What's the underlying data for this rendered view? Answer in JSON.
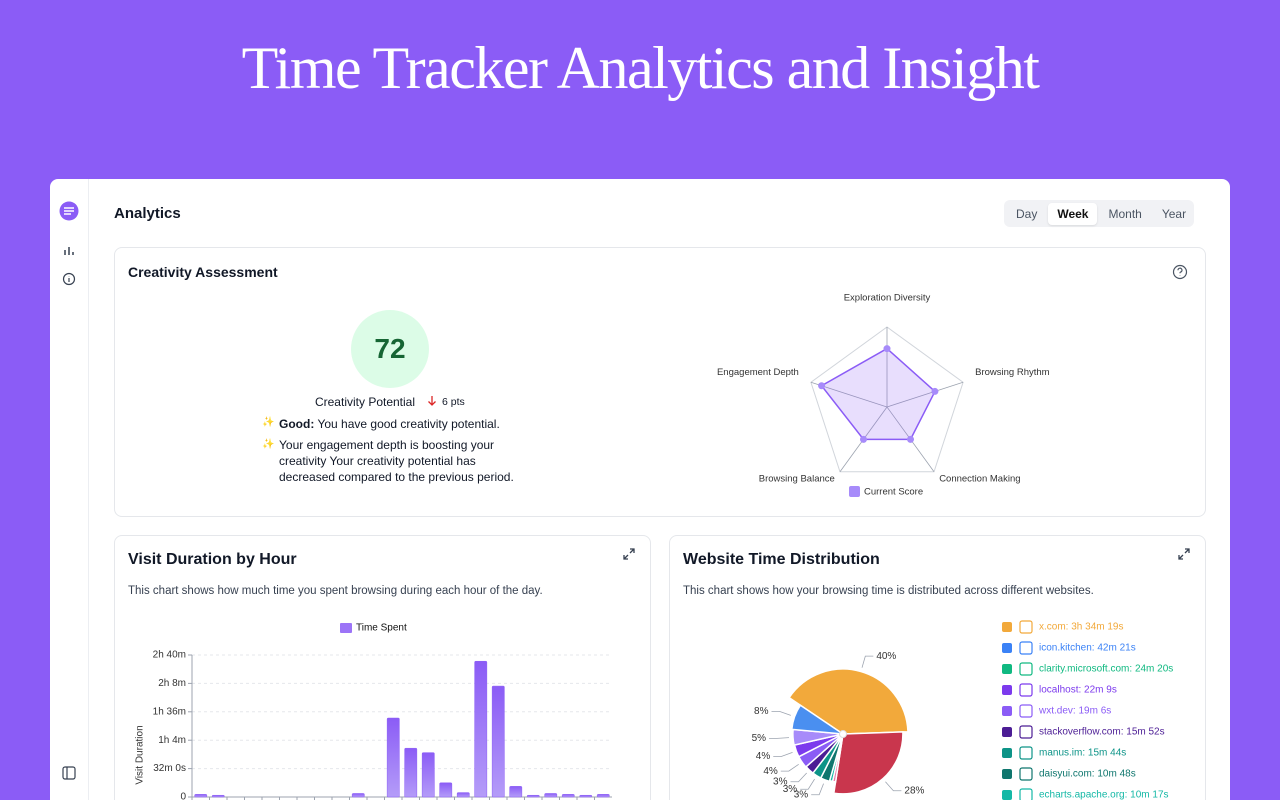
{
  "header": {
    "title": "Time Tracker Analytics and Insight"
  },
  "page": {
    "title": "Analytics",
    "tabs": [
      {
        "label": "Day",
        "active": false
      },
      {
        "label": "Week",
        "active": true
      },
      {
        "label": "Month",
        "active": false
      },
      {
        "label": "Year",
        "active": false
      }
    ]
  },
  "creativity": {
    "title": "Creativity Assessment",
    "score": 72,
    "score_label": "Creativity Potential",
    "change": "6 pts",
    "notes": [
      {
        "label": "Good:",
        "text": "You have good creativity potential."
      },
      {
        "text": "Your engagement depth is boosting your creativity Your creativity potential has decreased compared to the previous period."
      }
    ]
  },
  "chart_data": [
    {
      "type": "radar",
      "indicators": [
        "Exploration Diversity",
        "Browsing Rhythm",
        "Connection Making",
        "Browsing Balance",
        "Engagement Depth"
      ],
      "rlim": [
        0,
        100
      ],
      "rticks": [
        20,
        40,
        60,
        80,
        100
      ],
      "series": [
        {
          "name": "Current Score",
          "color": "#8b5cf6",
          "values": [
            73,
            63,
            50,
            50,
            86
          ]
        }
      ]
    },
    {
      "type": "bar",
      "title": "Visit Duration by Hour",
      "subtitle": "This chart shows how much time you spent browsing during each hour of the day.",
      "ylabel": "Visit Duration",
      "categories": [
        null,
        null,
        null,
        null,
        null,
        null,
        null,
        null,
        null,
        null,
        null,
        null,
        null,
        null,
        null,
        null,
        null,
        null,
        null,
        null,
        null,
        null,
        null,
        null
      ],
      "series": [
        {
          "name": "Time Spent",
          "color": "#8b5cf6",
          "values": [
            3,
            2,
            0,
            0,
            0,
            0,
            0,
            0,
            0,
            4,
            0,
            89,
            55,
            50,
            16,
            5,
            153,
            125,
            12,
            2,
            4,
            3,
            2,
            3
          ]
        }
      ],
      "ylim": [
        0,
        160
      ],
      "yticks": [
        0,
        {
          "value": 32,
          "label": "32m 0s"
        },
        {
          "value": 64,
          "label": "1h 4m"
        },
        {
          "value": 96,
          "label": "1h 36m"
        },
        {
          "value": 128,
          "label": "2h 8m"
        },
        {
          "value": 160,
          "label": "2h 40m"
        }
      ],
      "grid": true
    },
    {
      "type": "pie",
      "title": "Website Time Distribution",
      "subtitle": "This chart shows how your browsing time is distributed across different websites.",
      "values": [
        40,
        28,
        1,
        1,
        3,
        3,
        3,
        4,
        4,
        5,
        8
      ],
      "value_labels": [
        "40%",
        "28%",
        null,
        null,
        "3%",
        "3%",
        "3%",
        "4%",
        "4%",
        "5%",
        "8%"
      ],
      "colors": [
        "#f2a93b",
        "#c9364d",
        "#e87aa8",
        "#14b8a6",
        "#0f766e",
        "#0d9488",
        "#4c1d95",
        "#8b5cf6",
        "#7c3aed",
        "#a78bfa",
        "#4a8ff0"
      ],
      "legend": [
        {
          "name": "x.com: 3h 34m 19s",
          "color": "#f2a93b"
        },
        {
          "name": "icon.kitchen: 42m 21s",
          "color": "#3b82f6"
        },
        {
          "name": "clarity.microsoft.com: 24m 20s",
          "color": "#10b981"
        },
        {
          "name": "localhost: 22m 9s",
          "color": "#7c3aed"
        },
        {
          "name": "wxt.dev: 19m 6s",
          "color": "#8b5cf6"
        },
        {
          "name": "stackoverflow.com: 15m 52s",
          "color": "#4c1d95"
        },
        {
          "name": "manus.im: 15m 44s",
          "color": "#0d9488"
        },
        {
          "name": "daisyui.com: 10m 48s",
          "color": "#0f766e"
        },
        {
          "name": "echarts.apache.org: 10m 17s",
          "color": "#14b8a6"
        }
      ]
    }
  ]
}
